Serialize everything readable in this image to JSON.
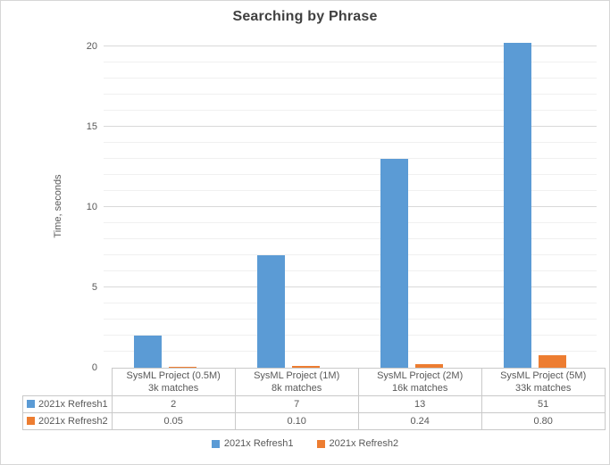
{
  "chart_data": {
    "type": "bar",
    "title": "Searching by Phrase",
    "xlabel": "",
    "ylabel": "Time, seconds",
    "ylim": [
      0,
      20
    ],
    "y_ticks": [
      0,
      5,
      10,
      15,
      20
    ],
    "minor_unit": 1,
    "major_unit": 5,
    "grid": true,
    "legend_position": "bottom",
    "data_table_shown": true,
    "categories": [
      [
        "SysML Project (0.5M)",
        "3k matches"
      ],
      [
        "SysML Project (1M)",
        "8k matches"
      ],
      [
        "SysML Project (2M)",
        "16k matches"
      ],
      [
        "SysML Project (5M)",
        "33k matches"
      ]
    ],
    "series": [
      {
        "name": "2021x Refresh1",
        "color": "#5B9BD5",
        "values": [
          2,
          7,
          13,
          51
        ],
        "display_values": [
          "2",
          "7",
          "13",
          "51"
        ]
      },
      {
        "name": "2021x Refresh2",
        "color": "#ED7D31",
        "values": [
          0.05,
          0.1,
          0.24,
          0.8
        ],
        "display_values": [
          "0.05",
          "0.10",
          "0.24",
          "0.80"
        ]
      }
    ]
  },
  "colors": {
    "series1_blue": "#5B9BD5",
    "series2_orange": "#ED7D31",
    "title_text": "#404040",
    "axis_text": "#595959",
    "grid_minor": "#F0F0F0",
    "grid_major": "#D9D9D9",
    "table_border": "#C9C9C9",
    "chart_border": "#D6D6D6"
  }
}
